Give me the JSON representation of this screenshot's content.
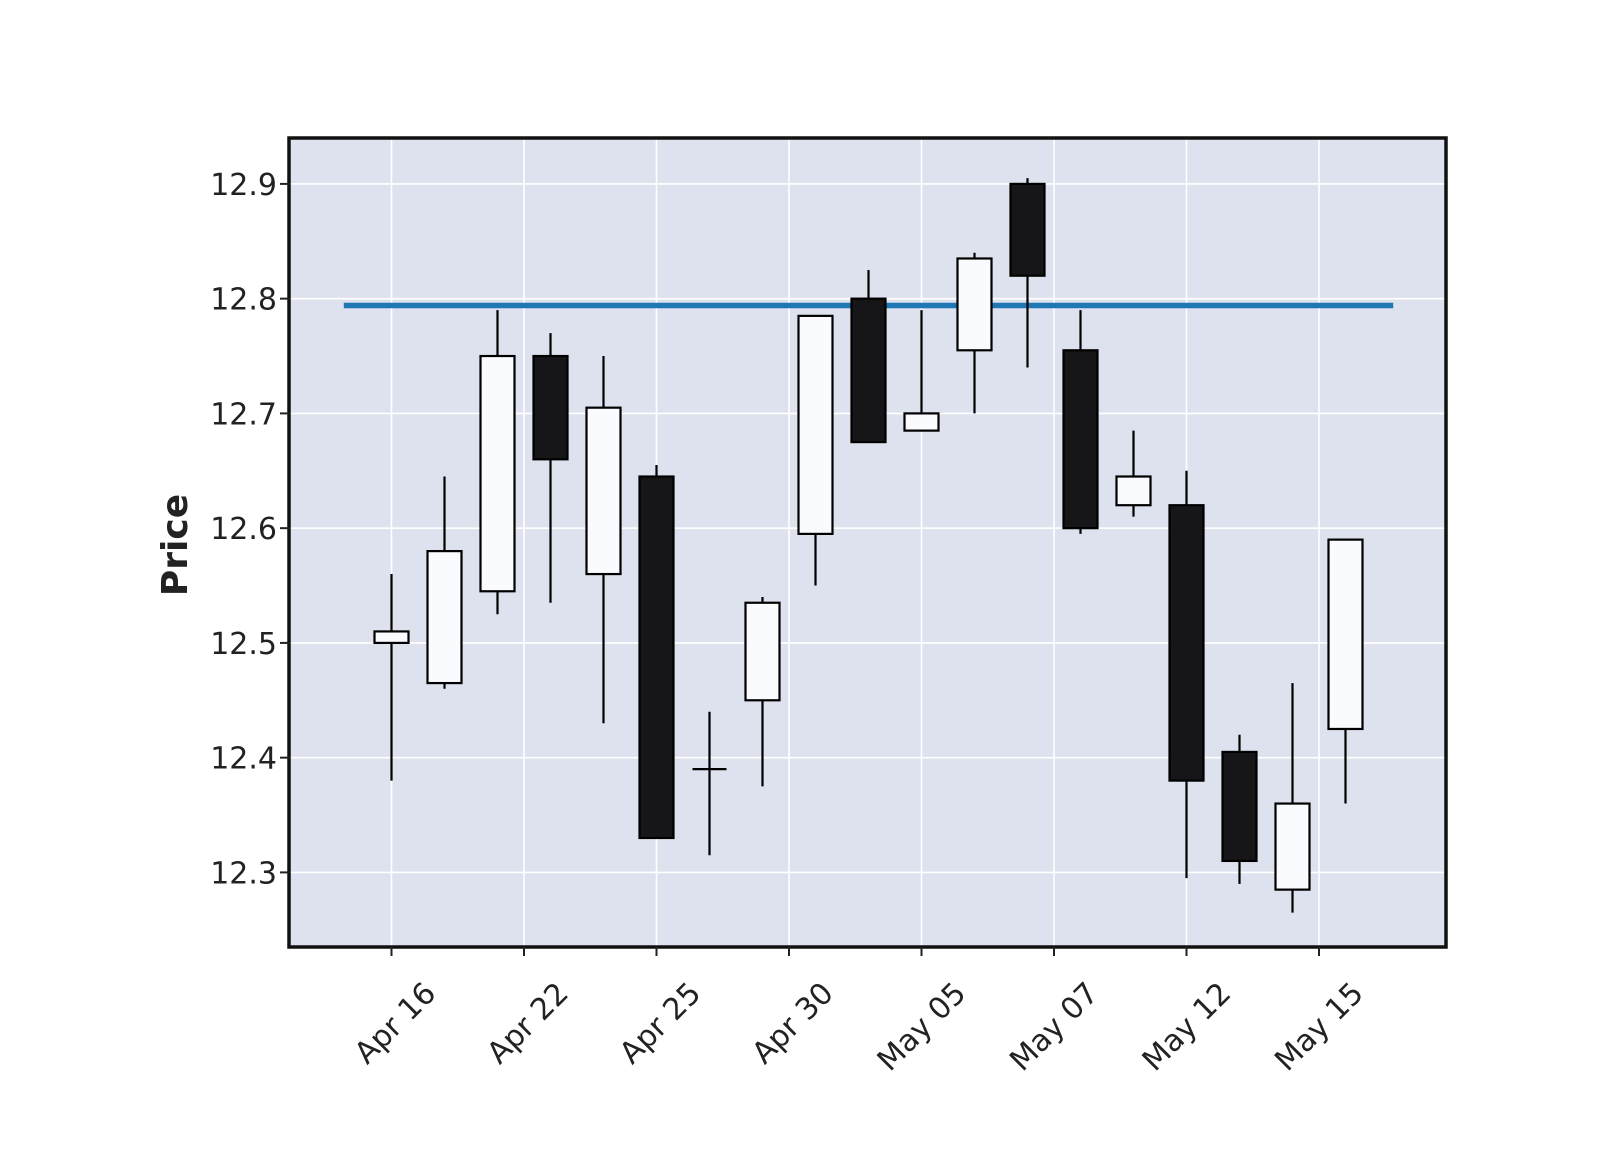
{
  "chart_data": {
    "type": "candlestick",
    "ylabel": "Price",
    "ylim": [
      12.235,
      12.94
    ],
    "yticks": [
      12.3,
      12.4,
      12.5,
      12.6,
      12.7,
      12.8,
      12.9
    ],
    "ytick_labels": [
      "12.3",
      "12.4",
      "12.5",
      "12.6",
      "12.7",
      "12.8",
      "12.9"
    ],
    "xtick_labels": [
      "Apr 16",
      "Apr 22",
      "Apr 25",
      "Apr 30",
      "May 05",
      "May 07",
      "May 12",
      "May 15"
    ],
    "xtick_candle_index": [
      0,
      2.5,
      5,
      7.5,
      10,
      12.5,
      15,
      17.5
    ],
    "grid": true,
    "hline": {
      "y": 12.794,
      "color": "#1f77b4"
    },
    "colors": {
      "up_fill": "#fafbfe",
      "down_fill": "#161618",
      "edge": "#000000",
      "plot_bg": "#dde2ee",
      "grid": "#ffffff"
    },
    "candles": [
      {
        "open": 12.5,
        "high": 12.56,
        "low": 12.38,
        "close": 12.51
      },
      {
        "open": 12.465,
        "high": 12.645,
        "low": 12.46,
        "close": 12.58
      },
      {
        "open": 12.545,
        "high": 12.79,
        "low": 12.525,
        "close": 12.75
      },
      {
        "open": 12.75,
        "high": 12.77,
        "low": 12.535,
        "close": 12.66
      },
      {
        "open": 12.56,
        "high": 12.75,
        "low": 12.43,
        "close": 12.705
      },
      {
        "open": 12.645,
        "high": 12.655,
        "low": 12.33,
        "close": 12.33
      },
      {
        "open": 12.39,
        "high": 12.44,
        "low": 12.315,
        "close": 12.39
      },
      {
        "open": 12.45,
        "high": 12.54,
        "low": 12.375,
        "close": 12.535
      },
      {
        "open": 12.595,
        "high": 12.785,
        "low": 12.55,
        "close": 12.785
      },
      {
        "open": 12.8,
        "high": 12.825,
        "low": 12.675,
        "close": 12.675
      },
      {
        "open": 12.685,
        "high": 12.79,
        "low": 12.685,
        "close": 12.7
      },
      {
        "open": 12.755,
        "high": 12.84,
        "low": 12.7,
        "close": 12.835
      },
      {
        "open": 12.9,
        "high": 12.905,
        "low": 12.74,
        "close": 12.82
      },
      {
        "open": 12.755,
        "high": 12.79,
        "low": 12.595,
        "close": 12.6
      },
      {
        "open": 12.62,
        "high": 12.685,
        "low": 12.61,
        "close": 12.645
      },
      {
        "open": 12.62,
        "high": 12.65,
        "low": 12.295,
        "close": 12.38
      },
      {
        "open": 12.405,
        "high": 12.42,
        "low": 12.29,
        "close": 12.31
      },
      {
        "open": 12.285,
        "high": 12.465,
        "low": 12.265,
        "close": 12.36
      },
      {
        "open": 12.425,
        "high": 12.59,
        "low": 12.36,
        "close": 12.59
      }
    ]
  }
}
